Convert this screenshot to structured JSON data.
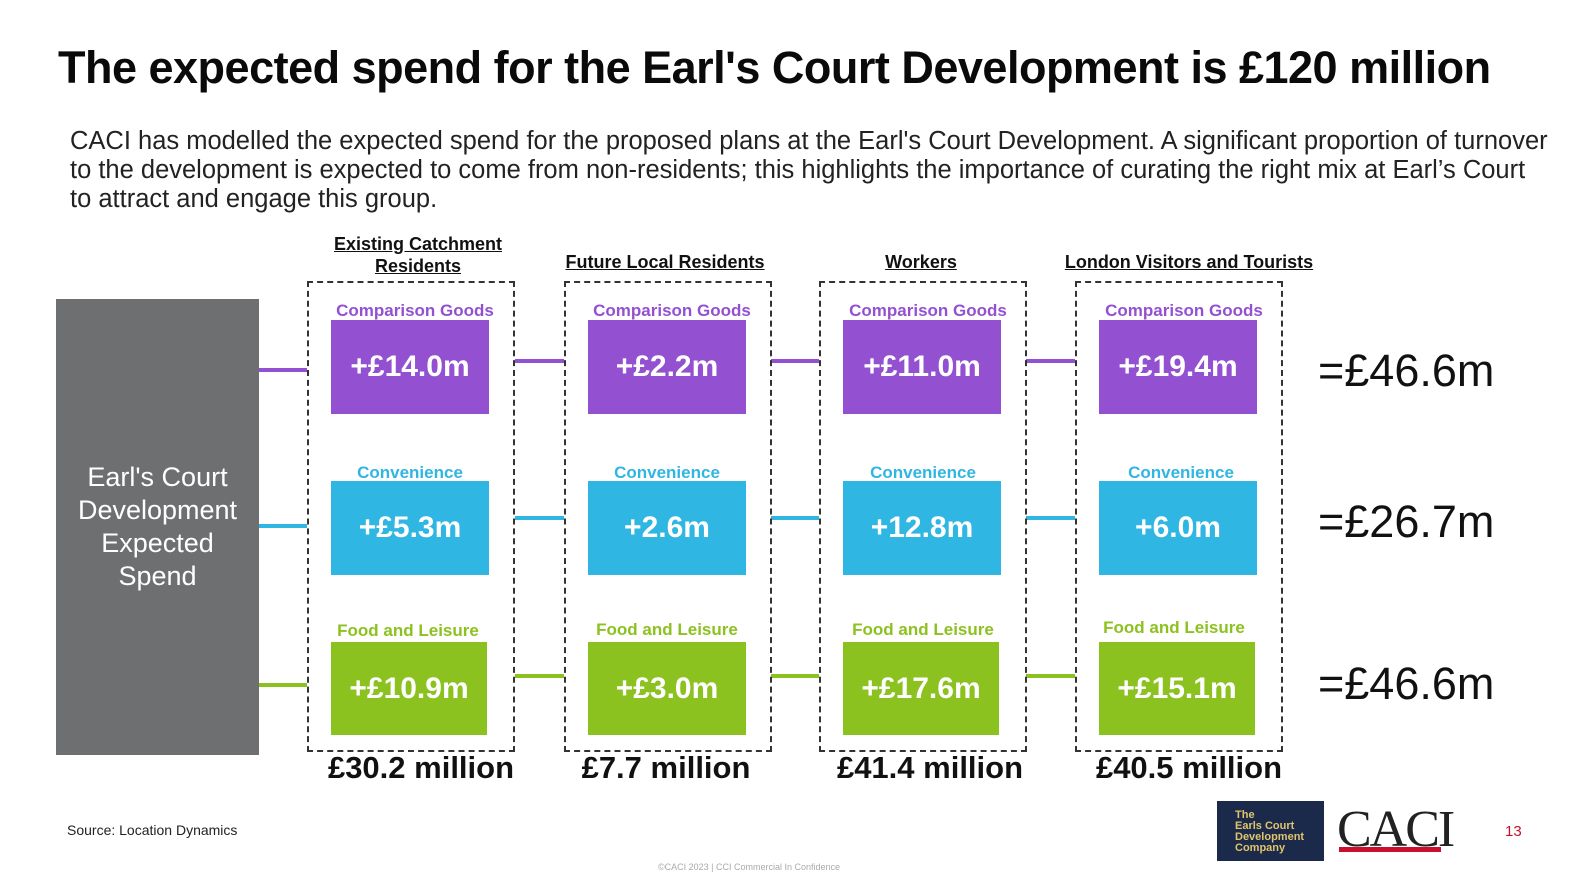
{
  "title": "The expected spend for the Earl's Court Development is £120 million",
  "intro": "CACI has modelled the expected spend for the proposed plans at the Earl's Court Development. A significant proportion of turnover to the development is expected to come from non-residents; this highlights the importance of curating the right mix at Earl’s Court to attract and engage this group.",
  "source_box": "Earl's Court Development Expected Spend",
  "colors": {
    "comparison": "#9351d1",
    "convenience": "#30b6e2",
    "food": "#8cc21f"
  },
  "columns": [
    {
      "heading": "Existing Catchment Residents",
      "total": "£30.2 million",
      "comparison_label": "Comparison Goods",
      "comparison_value": "+£14.0m",
      "convenience_label": "Convenience",
      "convenience_value": "+£5.3m",
      "food_label": "Food and Leisure",
      "food_value": "+£10.9m"
    },
    {
      "heading": "Future Local Residents",
      "total": "£7.7 million",
      "comparison_label": "Comparison Goods",
      "comparison_value": "+£2.2m",
      "convenience_label": "Convenience",
      "convenience_value": "+2.6m",
      "food_label": "Food and Leisure",
      "food_value": "+£3.0m"
    },
    {
      "heading": "Workers",
      "total": "£41.4 million",
      "comparison_label": "Comparison Goods",
      "comparison_value": "+£11.0m",
      "convenience_label": "Convenience",
      "convenience_value": "+12.8m",
      "food_label": "Food and Leisure",
      "food_value": "+£17.6m"
    },
    {
      "heading": "London Visitors and Tourists",
      "total": "£40.5 million",
      "comparison_label": "Comparison Goods",
      "comparison_value": "+£19.4m",
      "convenience_label": "Convenience",
      "convenience_value": "+6.0m",
      "food_label": "Food and Leisure",
      "food_value": "+£15.1m"
    }
  ],
  "row_sums": {
    "comparison": "=£46.6m",
    "convenience": "=£26.7m",
    "food": "=£46.6m"
  },
  "footer": {
    "source": "Source: Location Dynamics",
    "logo_lines": [
      "The",
      "Earls Court",
      "Development",
      "Company"
    ],
    "caci_logo": "CACI",
    "page_number": "13",
    "copyright": "©CACI 2023 | CCI Commercial In Confidence"
  }
}
